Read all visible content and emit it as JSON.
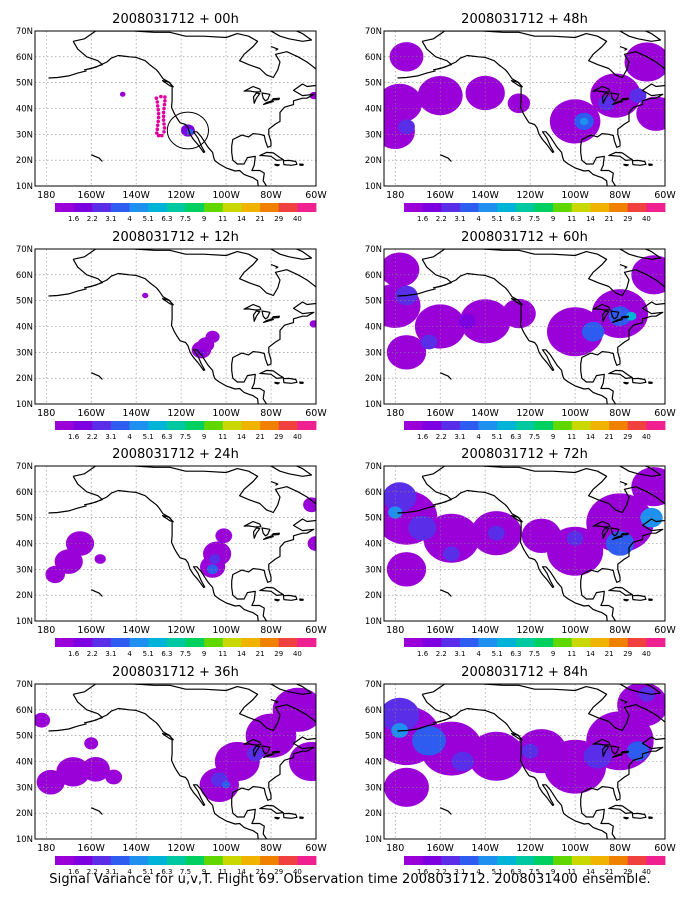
{
  "caption": "Signal Variance for u,v,T. Flight 69. Observation time 2008031712. 2008031400 ensemble.",
  "chart_data": {
    "type": "heatmap",
    "description_axis": {
      "x_ticks": [
        "180",
        "160W",
        "140W",
        "120W",
        "100W",
        "80W",
        "60W"
      ],
      "x_range_deg_east": [
        -185,
        -60
      ],
      "y_ticks": [
        "10N",
        "20N",
        "30N",
        "40N",
        "50N",
        "60N",
        "70N"
      ],
      "y_range_deg_north": [
        10,
        70
      ]
    },
    "colorbar": {
      "labels": [
        "1.6",
        "2.2",
        "3.1",
        "4",
        "5.1",
        "6.3",
        "7.5",
        "9",
        "11",
        "14",
        "21",
        "29",
        "40"
      ],
      "colors": [
        "#9a00d8",
        "#7c00e0",
        "#5a2ee8",
        "#2f5cf0",
        "#1e90f0",
        "#00b4d8",
        "#00c8a0",
        "#00d060",
        "#60d800",
        "#c8d800",
        "#f0b400",
        "#f08000",
        "#f04040",
        "#f02090"
      ]
    },
    "panels": [
      {
        "title": "2008031712 + 00h",
        "lead_hours": 0
      },
      {
        "title": "2008031712 + 12h",
        "lead_hours": 12
      },
      {
        "title": "2008031712 + 24h",
        "lead_hours": 24
      },
      {
        "title": "2008031712 + 36h",
        "lead_hours": 36
      },
      {
        "title": "2008031712 + 48h",
        "lead_hours": 48
      },
      {
        "title": "2008031712 + 60h",
        "lead_hours": 60
      },
      {
        "title": "2008031712 + 72h",
        "lead_hours": 72
      },
      {
        "title": "2008031712 + 84h",
        "lead_hours": 84
      }
    ],
    "observation_points": {
      "color": "#e000a0",
      "points": [
        [
          -131,
          44
        ],
        [
          -130.6,
          42.5
        ],
        [
          -130.4,
          41
        ],
        [
          -130.2,
          39.5
        ],
        [
          -130,
          38
        ],
        [
          -130,
          36.5
        ],
        [
          -130.2,
          35
        ],
        [
          -130.4,
          33.5
        ],
        [
          -130.6,
          32
        ],
        [
          -130.8,
          30.5
        ],
        [
          -130,
          29.5
        ],
        [
          -128.6,
          29.5
        ],
        [
          -127.6,
          31
        ],
        [
          -127.4,
          32.5
        ],
        [
          -127.6,
          34
        ],
        [
          -127.8,
          35.5
        ],
        [
          -127.8,
          37
        ],
        [
          -127.8,
          38.5
        ],
        [
          -127.6,
          40
        ],
        [
          -127.4,
          41.5
        ],
        [
          -127.2,
          43
        ],
        [
          -127.2,
          44.4
        ],
        [
          -129,
          44.6
        ]
      ]
    },
    "target_circle": {
      "lon": -117,
      "lat": 31.5,
      "radius_deg": 7.5
    },
    "blobs": {
      "p0": [
        {
          "lon": -117,
          "lat": 31.5,
          "r": 2.5,
          "level": 2
        },
        {
          "lon": -116,
          "lat": 31,
          "r": 1.2,
          "level": 4
        },
        {
          "lon": -146,
          "lat": 45.5,
          "r": 1.0,
          "level": 1
        },
        {
          "lon": -61,
          "lat": 45,
          "r": 1.5,
          "level": 1
        }
      ],
      "p1": [
        {
          "lon": -111,
          "lat": 31,
          "r": 3.5,
          "level": 1
        },
        {
          "lon": -109,
          "lat": 33,
          "r": 3,
          "level": 1
        },
        {
          "lon": -106,
          "lat": 36,
          "r": 2.5,
          "level": 1
        },
        {
          "lon": -111,
          "lat": 30,
          "r": 1.5,
          "level": 2
        },
        {
          "lon": -136,
          "lat": 52,
          "r": 1.1,
          "level": 1
        },
        {
          "lon": -61,
          "lat": 41,
          "r": 1.5,
          "level": 1
        }
      ],
      "p2": [
        {
          "lon": -106,
          "lat": 31,
          "r": 4.5,
          "level": 1
        },
        {
          "lon": -104,
          "lat": 36,
          "r": 5,
          "level": 1
        },
        {
          "lon": -101,
          "lat": 43,
          "r": 3,
          "level": 1
        },
        {
          "lon": -106,
          "lat": 30,
          "r": 2,
          "level": 4
        },
        {
          "lon": -105,
          "lat": 34,
          "r": 2,
          "level": 3
        },
        {
          "lon": -165,
          "lat": 40,
          "r": 5,
          "level": 1
        },
        {
          "lon": -170,
          "lat": 33,
          "r": 5,
          "level": 1
        },
        {
          "lon": -176,
          "lat": 28,
          "r": 3.5,
          "level": 1
        },
        {
          "lon": -156,
          "lat": 34,
          "r": 2,
          "level": 1
        },
        {
          "lon": -62,
          "lat": 55,
          "r": 3,
          "level": 1
        },
        {
          "lon": -60,
          "lat": 40,
          "r": 3,
          "level": 1
        }
      ],
      "p3": [
        {
          "lon": -103,
          "lat": 31,
          "r": 7,
          "level": 1
        },
        {
          "lon": -95,
          "lat": 40,
          "r": 8,
          "level": 1
        },
        {
          "lon": -80,
          "lat": 50,
          "r": 9,
          "level": 1
        },
        {
          "lon": -68,
          "lat": 60,
          "r": 9,
          "level": 1
        },
        {
          "lon": -62,
          "lat": 40,
          "r": 8,
          "level": 1
        },
        {
          "lon": -103,
          "lat": 33,
          "r": 3,
          "level": 3
        },
        {
          "lon": -87,
          "lat": 43,
          "r": 3,
          "level": 3
        },
        {
          "lon": -100,
          "lat": 31,
          "r": 1.5,
          "level": 4
        },
        {
          "lon": -168,
          "lat": 36,
          "r": 6,
          "level": 1
        },
        {
          "lon": -158,
          "lat": 37,
          "r": 5,
          "level": 1
        },
        {
          "lon": -178,
          "lat": 32,
          "r": 5,
          "level": 1
        },
        {
          "lon": -182,
          "lat": 56,
          "r": 3,
          "level": 1
        },
        {
          "lon": -160,
          "lat": 47,
          "r": 2.5,
          "level": 1
        },
        {
          "lon": -150,
          "lat": 34,
          "r": 3,
          "level": 1
        }
      ],
      "p4": [
        {
          "lon": -178,
          "lat": 42,
          "r": 8,
          "level": 1
        },
        {
          "lon": -160,
          "lat": 45,
          "r": 8,
          "level": 1
        },
        {
          "lon": -140,
          "lat": 46,
          "r": 7,
          "level": 1
        },
        {
          "lon": -125,
          "lat": 42,
          "r": 4,
          "level": 1
        },
        {
          "lon": -180,
          "lat": 31,
          "r": 7,
          "level": 1
        },
        {
          "lon": -175,
          "lat": 60,
          "r": 6,
          "level": 1
        },
        {
          "lon": -100,
          "lat": 35,
          "r": 9,
          "level": 1
        },
        {
          "lon": -82,
          "lat": 45,
          "r": 9,
          "level": 1
        },
        {
          "lon": -68,
          "lat": 58,
          "r": 8,
          "level": 1
        },
        {
          "lon": -64,
          "lat": 38,
          "r": 7,
          "level": 1
        },
        {
          "lon": -175,
          "lat": 33,
          "r": 3,
          "level": 3
        },
        {
          "lon": -96,
          "lat": 35,
          "r": 3.5,
          "level": 4
        },
        {
          "lon": -86,
          "lat": 42,
          "r": 3,
          "level": 3
        },
        {
          "lon": -72,
          "lat": 45,
          "r": 3,
          "level": 3
        },
        {
          "lon": -96,
          "lat": 35,
          "r": 1.5,
          "level": 5
        }
      ],
      "p5": [
        {
          "lon": -180,
          "lat": 48,
          "r": 9,
          "level": 1
        },
        {
          "lon": -160,
          "lat": 40,
          "r": 9,
          "level": 1
        },
        {
          "lon": -140,
          "lat": 42,
          "r": 9,
          "level": 1
        },
        {
          "lon": -125,
          "lat": 45,
          "r": 6,
          "level": 1
        },
        {
          "lon": -175,
          "lat": 30,
          "r": 7,
          "level": 1
        },
        {
          "lon": -178,
          "lat": 62,
          "r": 7,
          "level": 1
        },
        {
          "lon": -100,
          "lat": 38,
          "r": 10,
          "level": 1
        },
        {
          "lon": -80,
          "lat": 45,
          "r": 10,
          "level": 1
        },
        {
          "lon": -65,
          "lat": 60,
          "r": 8,
          "level": 1
        },
        {
          "lon": -175,
          "lat": 52,
          "r": 4,
          "level": 3
        },
        {
          "lon": -165,
          "lat": 34,
          "r": 3,
          "level": 3
        },
        {
          "lon": -148,
          "lat": 42,
          "r": 3,
          "level": 2
        },
        {
          "lon": -92,
          "lat": 38,
          "r": 4,
          "level": 4
        },
        {
          "lon": -80,
          "lat": 44,
          "r": 4,
          "level": 4
        },
        {
          "lon": -75,
          "lat": 44,
          "r": 1.8,
          "level": 6
        }
      ],
      "p6": [
        {
          "lon": -175,
          "lat": 50,
          "r": 11,
          "level": 1
        },
        {
          "lon": -155,
          "lat": 42,
          "r": 10,
          "level": 1
        },
        {
          "lon": -135,
          "lat": 44,
          "r": 9,
          "level": 1
        },
        {
          "lon": -115,
          "lat": 43,
          "r": 7,
          "level": 1
        },
        {
          "lon": -175,
          "lat": 30,
          "r": 7,
          "level": 1
        },
        {
          "lon": -100,
          "lat": 37,
          "r": 10,
          "level": 1
        },
        {
          "lon": -80,
          "lat": 48,
          "r": 12,
          "level": 1
        },
        {
          "lon": -65,
          "lat": 62,
          "r": 8,
          "level": 1
        },
        {
          "lon": -178,
          "lat": 58,
          "r": 6,
          "level": 3
        },
        {
          "lon": -168,
          "lat": 46,
          "r": 5,
          "level": 3
        },
        {
          "lon": -155,
          "lat": 36,
          "r": 3,
          "level": 3
        },
        {
          "lon": -135,
          "lat": 44,
          "r": 3,
          "level": 3
        },
        {
          "lon": -100,
          "lat": 42,
          "r": 3,
          "level": 3
        },
        {
          "lon": -80,
          "lat": 40,
          "r": 5,
          "level": 4
        },
        {
          "lon": -66,
          "lat": 50,
          "r": 4,
          "level": 5
        },
        {
          "lon": -180,
          "lat": 52,
          "r": 2.5,
          "level": 5
        }
      ],
      "p7": [
        {
          "lon": -175,
          "lat": 50,
          "r": 12,
          "level": 1
        },
        {
          "lon": -155,
          "lat": 45,
          "r": 11,
          "level": 1
        },
        {
          "lon": -135,
          "lat": 42,
          "r": 10,
          "level": 1
        },
        {
          "lon": -115,
          "lat": 44,
          "r": 9,
          "level": 1
        },
        {
          "lon": -175,
          "lat": 30,
          "r": 8,
          "level": 1
        },
        {
          "lon": -100,
          "lat": 38,
          "r": 11,
          "level": 1
        },
        {
          "lon": -80,
          "lat": 48,
          "r": 12,
          "level": 1
        },
        {
          "lon": -70,
          "lat": 62,
          "r": 9,
          "level": 1
        },
        {
          "lon": -178,
          "lat": 58,
          "r": 7,
          "level": 3
        },
        {
          "lon": -165,
          "lat": 48,
          "r": 6,
          "level": 4
        },
        {
          "lon": -150,
          "lat": 40,
          "r": 4,
          "level": 3
        },
        {
          "lon": -120,
          "lat": 44,
          "r": 3,
          "level": 3
        },
        {
          "lon": -90,
          "lat": 42,
          "r": 5,
          "level": 3
        },
        {
          "lon": -72,
          "lat": 44,
          "r": 4,
          "level": 4
        },
        {
          "lon": -178,
          "lat": 52,
          "r": 3,
          "level": 5
        },
        {
          "lon": -68,
          "lat": 66,
          "r": 3,
          "level": 3
        }
      ]
    }
  }
}
